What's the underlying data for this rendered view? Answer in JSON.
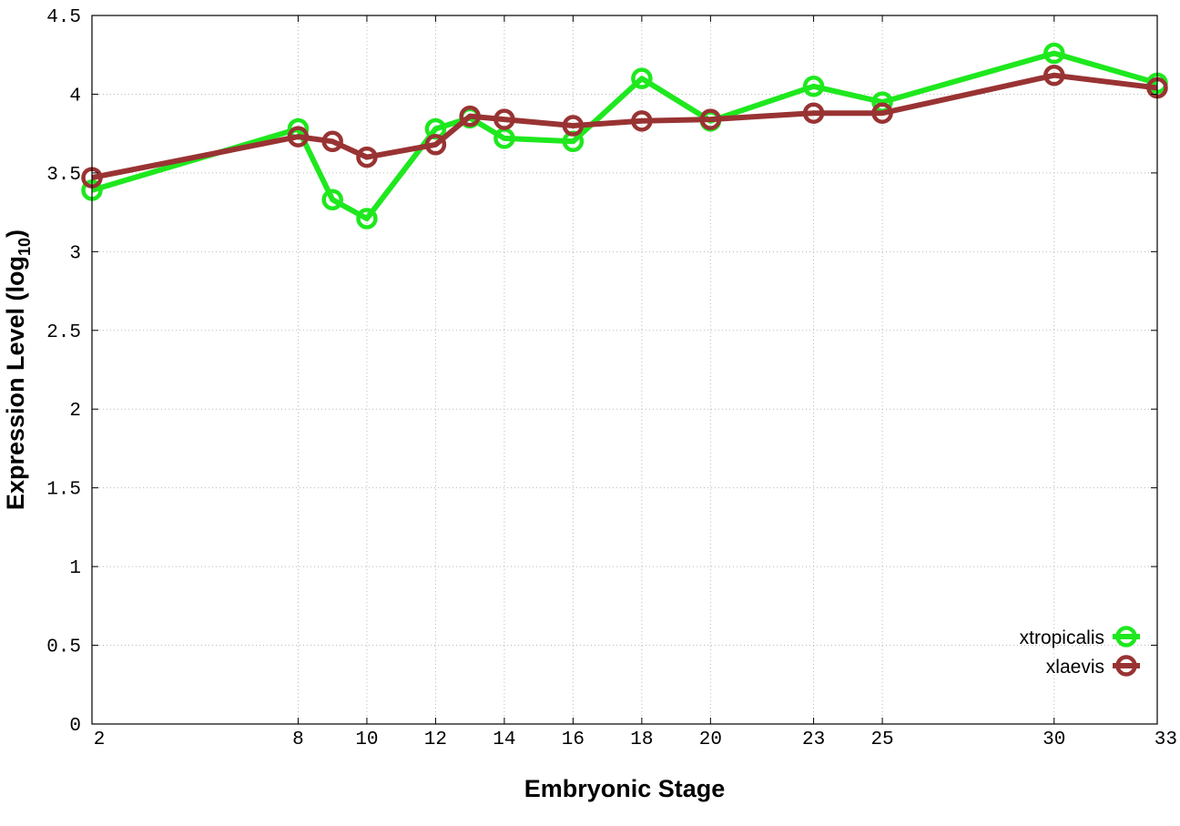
{
  "chart_data": {
    "type": "line",
    "xlabel": "Embryonic Stage",
    "ylabel_main": "Expression Level (log",
    "ylabel_sub": "10",
    "ylabel_close": ")",
    "x_ticks": [
      "2",
      "8",
      "10",
      "12",
      "14",
      "16",
      "18",
      "20",
      "23",
      "25",
      "30",
      "33"
    ],
    "y_ticks": [
      "0",
      "0.5",
      "1",
      "1.5",
      "2",
      "2.5",
      "3",
      "3.5",
      "4",
      "4.5"
    ],
    "ylim": [
      0,
      4.5
    ],
    "grid": true,
    "legend_position": "bottom-right",
    "series": [
      {
        "name": "xtropicalis",
        "color": "#1ee81e",
        "points": [
          {
            "stage": "2",
            "y": 3.39
          },
          {
            "stage": "8",
            "y": 3.78
          },
          {
            "stage": "9",
            "y": 3.33
          },
          {
            "stage": "10",
            "y": 3.21
          },
          {
            "stage": "12",
            "y": 3.78
          },
          {
            "stage": "13",
            "y": 3.85
          },
          {
            "stage": "14",
            "y": 3.72
          },
          {
            "stage": "16",
            "y": 3.7
          },
          {
            "stage": "18",
            "y": 4.1
          },
          {
            "stage": "20",
            "y": 3.83
          },
          {
            "stage": "23",
            "y": 4.05
          },
          {
            "stage": "25",
            "y": 3.95
          },
          {
            "stage": "30",
            "y": 4.26
          },
          {
            "stage": "33",
            "y": 4.07
          }
        ]
      },
      {
        "name": "xlaevis",
        "color": "#993333",
        "points": [
          {
            "stage": "2",
            "y": 3.47
          },
          {
            "stage": "8",
            "y": 3.73
          },
          {
            "stage": "9",
            "y": 3.7
          },
          {
            "stage": "10",
            "y": 3.6
          },
          {
            "stage": "12",
            "y": 3.68
          },
          {
            "stage": "13",
            "y": 3.86
          },
          {
            "stage": "14",
            "y": 3.84
          },
          {
            "stage": "16",
            "y": 3.8
          },
          {
            "stage": "18",
            "y": 3.83
          },
          {
            "stage": "20",
            "y": 3.84
          },
          {
            "stage": "23",
            "y": 3.88
          },
          {
            "stage": "25",
            "y": 3.88
          },
          {
            "stage": "30",
            "y": 4.12
          },
          {
            "stage": "33",
            "y": 4.04
          }
        ]
      }
    ]
  }
}
